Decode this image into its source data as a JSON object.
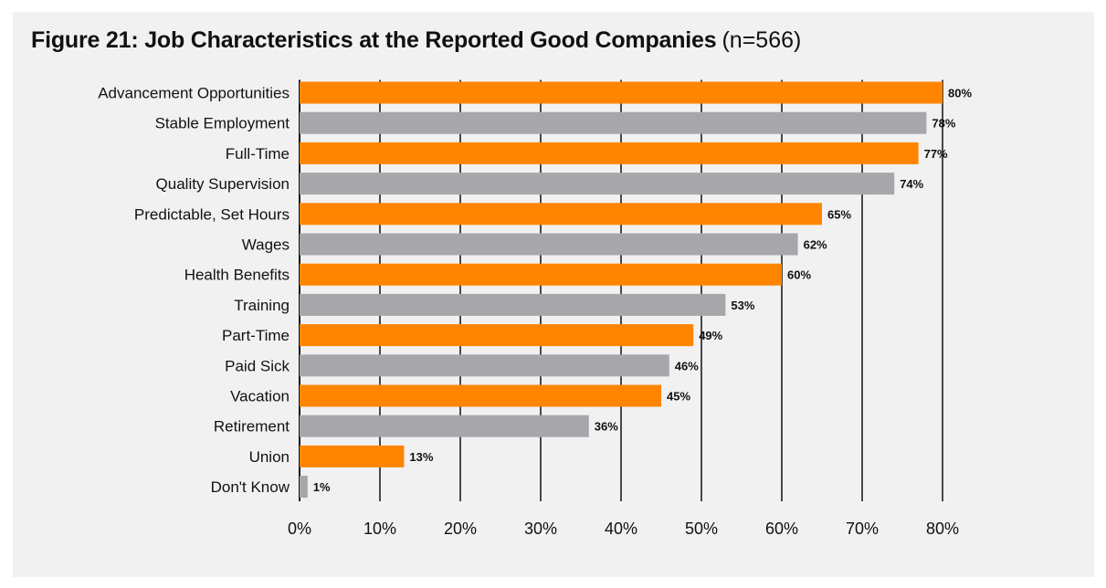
{
  "figure": {
    "title": "Figure 21: Job Characteristics at the Reported Good Companies",
    "note": "(n=566)"
  },
  "colors": {
    "orange": "#ff8400",
    "gray": "#a7a7ab",
    "panel": "#f1f1f2",
    "grid": "#111111"
  },
  "chart_data": {
    "type": "bar",
    "orientation": "horizontal",
    "title": "Figure 21: Job Characteristics at the Reported Good Companies (n=566)",
    "categories": [
      "Advancement Opportunities",
      "Stable Employment",
      "Full-Time",
      "Quality Supervision",
      "Predictable, Set Hours",
      "Wages",
      "Health Benefits",
      "Training",
      "Part-Time",
      "Paid Sick",
      "Vacation",
      "Retirement",
      "Union",
      "Don't Know"
    ],
    "values": [
      80,
      78,
      77,
      74,
      65,
      62,
      60,
      53,
      49,
      46,
      45,
      36,
      13,
      1
    ],
    "value_labels": [
      "80%",
      "78%",
      "77%",
      "74%",
      "65%",
      "62%",
      "60%",
      "53%",
      "49%",
      "46%",
      "45%",
      "36%",
      "13%",
      "1%"
    ],
    "bar_colors": [
      "orange",
      "gray",
      "orange",
      "gray",
      "orange",
      "gray",
      "orange",
      "gray",
      "orange",
      "gray",
      "orange",
      "gray",
      "orange",
      "gray"
    ],
    "xlim": [
      0,
      80
    ],
    "xticks": [
      0,
      10,
      20,
      30,
      40,
      50,
      60,
      70,
      80
    ],
    "xtick_labels": [
      "0%",
      "10%",
      "20%",
      "30%",
      "40%",
      "50%",
      "60%",
      "70%",
      "80%"
    ],
    "xlabel": "",
    "ylabel": "",
    "grid": true,
    "legend": false
  }
}
